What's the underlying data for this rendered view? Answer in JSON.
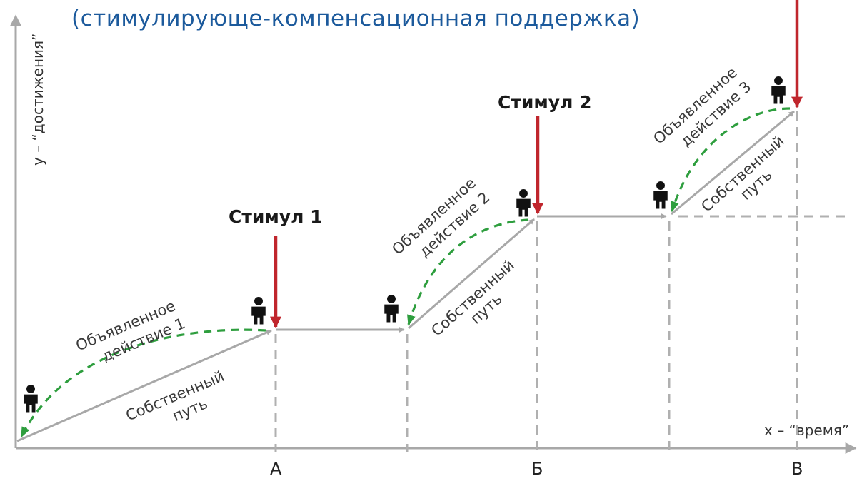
{
  "title": "(стимулирующе-компенсационная поддержка)",
  "axes": {
    "y_label": "y – “достижения”",
    "x_label": "x – “время”",
    "ticks": [
      "А",
      "Б",
      "В"
    ]
  },
  "stimuli": [
    {
      "label": "Стимул 1"
    },
    {
      "label": "Стимул 2"
    },
    {
      "label": ""
    }
  ],
  "stages": [
    {
      "declared": [
        "Объявленное",
        "действие 1"
      ],
      "own": [
        "Собственный",
        "путь"
      ]
    },
    {
      "declared": [
        "Объявленное",
        "действие 2"
      ],
      "own": [
        "Собственный",
        "путь"
      ]
    },
    {
      "declared": [
        "Объявленное",
        "действие 3"
      ],
      "own": [
        "Собственный",
        "путь"
      ]
    }
  ],
  "colors": {
    "title": "#1c5a9c",
    "stimulus_arrow": "#c0262d",
    "declared_path": "#2e9e3e",
    "own_path": "#a8a8a8",
    "axis": "#a8a8a8",
    "guide": "#b0b0b0",
    "person": "#111111"
  },
  "icons": {
    "person": "person-icon"
  }
}
